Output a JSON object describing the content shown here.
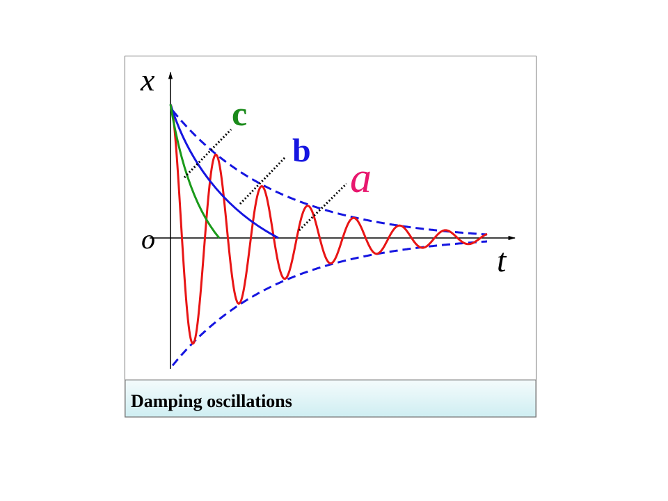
{
  "axes": {
    "x_label": "x",
    "t_label": "t",
    "origin_label": "o"
  },
  "curve_labels": {
    "a": "a",
    "b": "b",
    "c": "c"
  },
  "caption": "Damping oscillations"
}
